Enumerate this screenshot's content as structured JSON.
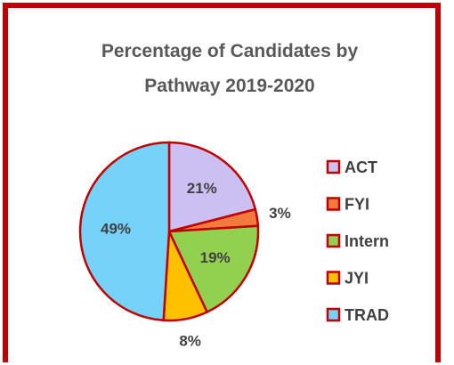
{
  "chart_data": {
    "type": "pie",
    "title": "Percentage of Candidates by Pathway 2019-2020",
    "categories": [
      "ACT",
      "FYI",
      "Intern",
      "JYI",
      "TRAD"
    ],
    "values": [
      21,
      3,
      19,
      8,
      49
    ],
    "value_labels": [
      "21%",
      "3%",
      "19%",
      "8%",
      "49%"
    ],
    "colors": [
      "#ccc0f2",
      "#f27a3c",
      "#92d050",
      "#ffc000",
      "#75d3fa"
    ],
    "edge_color": "#c00000"
  }
}
